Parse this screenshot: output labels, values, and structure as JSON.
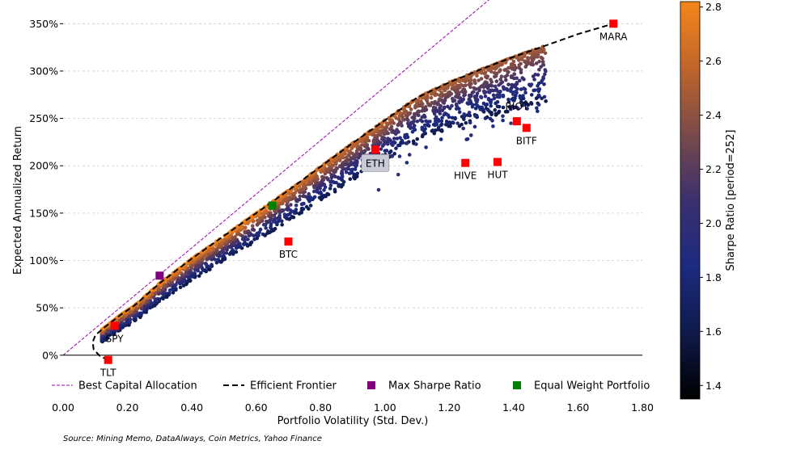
{
  "chart_data": {
    "type": "scatter",
    "xlabel": "Portfolio Volatility (Std. Dev.)",
    "ylabel": "Expected Annualized Return",
    "xlim": [
      0,
      1.8
    ],
    "ylim": [
      -0.07,
      3.75
    ],
    "x_ticks": [
      0,
      0.2,
      0.4,
      0.6,
      0.8,
      1.0,
      1.2,
      1.4,
      1.6,
      1.8
    ],
    "x_tick_labels": [
      "0.00",
      "0.20",
      "0.40",
      "0.60",
      "0.80",
      "1.00",
      "1.20",
      "1.40",
      "1.60",
      "1.80"
    ],
    "y_ticks": [
      0,
      0.5,
      1.0,
      1.5,
      2.0,
      2.5,
      3.0,
      3.5
    ],
    "y_tick_labels": [
      "0%",
      "50%",
      "100%",
      "150%",
      "200%",
      "250%",
      "300%",
      "350%"
    ],
    "grid": "horizontal dashed",
    "colorbar": {
      "label": "Sharpe Ratio [period=252]",
      "range": [
        1.35,
        2.82
      ],
      "ticks": [
        1.4,
        1.6,
        1.8,
        2.0,
        2.2,
        2.4,
        2.6,
        2.8
      ],
      "tick_labels": [
        "1.4",
        "1.6",
        "1.8",
        "2.0",
        "2.2",
        "2.4",
        "2.6",
        "2.8"
      ],
      "colormap": [
        "#000000",
        "#0f1a4a",
        "#1c2a80",
        "#3b2f6e",
        "#7a4a4a",
        "#c0652a",
        "#f5861a"
      ]
    },
    "assets": [
      {
        "name": "MARA",
        "x": 1.71,
        "y": 3.5,
        "label_pos": "below"
      },
      {
        "name": "RIOT",
        "x": 1.41,
        "y": 2.47,
        "label_pos": "above"
      },
      {
        "name": "BITF",
        "x": 1.44,
        "y": 2.4,
        "label_pos": "below"
      },
      {
        "name": "HIVE",
        "x": 1.25,
        "y": 2.03,
        "label_pos": "below"
      },
      {
        "name": "HUT",
        "x": 1.35,
        "y": 2.04,
        "label_pos": "below"
      },
      {
        "name": "ETH",
        "x": 0.97,
        "y": 2.17,
        "label_pos": "box"
      },
      {
        "name": "BTC",
        "x": 0.7,
        "y": 1.2,
        "label_pos": "below"
      },
      {
        "name": "SPY",
        "x": 0.16,
        "y": 0.31,
        "label_pos": "below"
      },
      {
        "name": "TLT",
        "x": 0.14,
        "y": -0.05,
        "label_pos": "below"
      }
    ],
    "max_sharpe": {
      "x": 0.3,
      "y": 0.84,
      "color": "#800080"
    },
    "equal_weight": {
      "x": 0.65,
      "y": 1.58,
      "color": "#008000"
    },
    "efficient_frontier": {
      "x": [
        0.14,
        0.115,
        0.095,
        0.092,
        0.1,
        0.12,
        0.15,
        0.18,
        0.22,
        0.3,
        0.4,
        0.5,
        0.6,
        0.7,
        0.8,
        0.9,
        1.0,
        1.1,
        1.2,
        1.3,
        1.4,
        1.5,
        1.6,
        1.71
      ],
      "y": [
        -0.05,
        -0.01,
        0.06,
        0.14,
        0.21,
        0.27,
        0.35,
        0.43,
        0.52,
        0.76,
        1.02,
        1.26,
        1.5,
        1.74,
        1.99,
        2.24,
        2.48,
        2.72,
        2.88,
        3.02,
        3.15,
        3.27,
        3.39,
        3.5
      ]
    },
    "capital_allocation_line": {
      "x": [
        0,
        1.33
      ],
      "y": [
        0,
        3.77
      ],
      "color": "#9900aa"
    },
    "legend": [
      {
        "label": "Best Capital Allocation",
        "kind": "dashed-thin",
        "color": "#9900aa"
      },
      {
        "label": "Efficient Frontier",
        "kind": "dashed-thick",
        "color": "#000000"
      },
      {
        "label": "Max Sharpe Ratio",
        "kind": "square",
        "color": "#800080"
      },
      {
        "label": "Equal Weight Portfolio",
        "kind": "square",
        "color": "#008000"
      }
    ],
    "legend_placement": "below plot",
    "asset_marker_color": "#ff0000"
  },
  "source_note": "Source: Mining Memo, DataAlways, Coin Metrics, Yahoo Finance"
}
